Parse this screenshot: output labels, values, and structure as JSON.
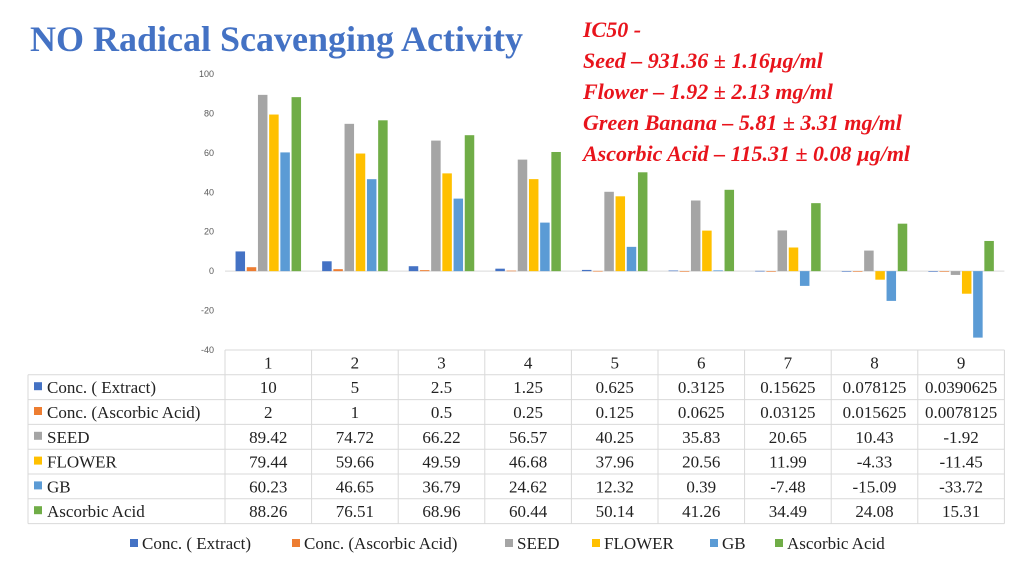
{
  "title": "NO Radical Scavenging Activity",
  "ic50": {
    "heading": "IC50 -",
    "lines": [
      "Seed – 931.36 ± 1.16µg/ml",
      "Flower – 1.92 ±  2.13 mg/ml",
      "Green Banana – 5.81 ±  3.31 mg/ml",
      "Ascorbic Acid – 115.31 ±  0.08 µg/ml"
    ]
  },
  "chart_data": {
    "type": "bar",
    "categories": [
      "1",
      "2",
      "3",
      "4",
      "5",
      "6",
      "7",
      "8",
      "9"
    ],
    "ylim": [
      -40,
      100
    ],
    "yticks": [
      "100",
      "80",
      "60",
      "40",
      "20",
      "0",
      "-20",
      "-40"
    ],
    "grid": false,
    "legend_position": "bottom",
    "series": [
      {
        "name": "Conc. ( Extract)",
        "color": "#4472C4",
        "values": [
          10,
          5,
          2.5,
          1.25,
          0.625,
          0.3125,
          0.15625,
          0.078125,
          0.0390625
        ],
        "labels": [
          "10",
          "5",
          "2.5",
          "1.25",
          "0.625",
          "0.3125",
          "0.15625",
          "0.078125",
          "0.0390625"
        ]
      },
      {
        "name": "Conc. (Ascorbic Acid)",
        "color": "#ED7D31",
        "values": [
          2,
          1,
          0.5,
          0.25,
          0.125,
          0.0625,
          0.03125,
          0.015625,
          0.0078125
        ],
        "labels": [
          "2",
          "1",
          "0.5",
          "0.25",
          "0.125",
          "0.0625",
          "0.03125",
          "0.015625",
          "0.0078125"
        ]
      },
      {
        "name": "SEED",
        "color": "#A5A5A5",
        "values": [
          89.42,
          74.72,
          66.22,
          56.57,
          40.25,
          35.83,
          20.65,
          10.43,
          -1.92
        ],
        "labels": [
          "89.42",
          "74.72",
          "66.22",
          "56.57",
          "40.25",
          "35.83",
          "20.65",
          "10.43",
          "-1.92"
        ]
      },
      {
        "name": "FLOWER",
        "color": "#FFC000",
        "values": [
          79.44,
          59.66,
          49.59,
          46.68,
          37.96,
          20.56,
          11.99,
          -4.33,
          -11.45
        ],
        "labels": [
          "79.44",
          "59.66",
          "49.59",
          "46.68",
          "37.96",
          "20.56",
          "11.99",
          "-4.33",
          "-11.45"
        ]
      },
      {
        "name": "GB",
        "color": "#5B9BD5",
        "values": [
          60.23,
          46.65,
          36.79,
          24.62,
          12.32,
          0.39,
          -7.48,
          -15.09,
          -33.72
        ],
        "labels": [
          "60.23",
          "46.65",
          "36.79",
          "24.62",
          "12.32",
          "0.39",
          "-7.48",
          "-15.09",
          "-33.72"
        ]
      },
      {
        "name": "Ascorbic Acid",
        "color": "#70AD47",
        "values": [
          88.26,
          76.51,
          68.96,
          60.44,
          50.14,
          41.26,
          34.49,
          24.08,
          15.31
        ],
        "labels": [
          "88.26",
          "76.51",
          "68.96",
          "60.44",
          "50.14",
          "41.26",
          "34.49",
          "24.08",
          "15.31"
        ]
      }
    ]
  }
}
